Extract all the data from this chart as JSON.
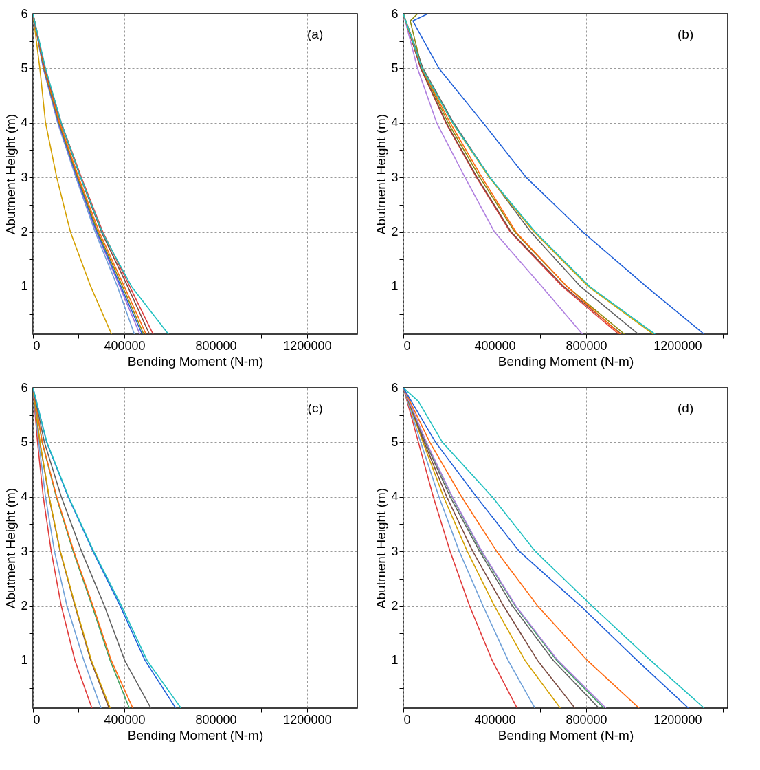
{
  "chart_data": [
    {
      "type": "line",
      "xlabel": "Bending Moment (N-m)",
      "ylabel": "Abutment Height (m)",
      "annotations": [
        "(a)"
      ],
      "grid": true,
      "xlim": [
        0,
        1420000
      ],
      "ylim": [
        0.13,
        6
      ],
      "xticks": [
        0,
        {
          "value": 200000,
          "label": null
        },
        400000,
        {
          "value": 600000,
          "label": null
        },
        800000,
        {
          "value": 1000000,
          "label": null
        },
        1200000,
        {
          "value": 1400000,
          "label": null
        }
      ],
      "yticks": [
        {
          "value": 0.5,
          "label": null
        },
        1,
        {
          "value": 1.5,
          "label": null
        },
        2,
        {
          "value": 2.5,
          "label": null
        },
        3,
        {
          "value": 3.5,
          "label": null
        },
        4,
        {
          "value": 4.5,
          "label": null
        },
        5,
        {
          "value": 5.5,
          "label": null
        },
        6
      ],
      "series": [
        {
          "color": "#d4a000",
          "x": [
            0,
            30000,
            55000,
            104000,
            164000,
            253000,
            344000
          ],
          "values": [
            6,
            5,
            4,
            3,
            2,
            1,
            0.13
          ]
        },
        {
          "color": "#6fa0d8",
          "x": [
            0,
            45000,
            108000,
            188000,
            272000,
            370000,
            444000
          ],
          "values": [
            6,
            5,
            4,
            3,
            2,
            1,
            0.13
          ]
        },
        {
          "color": "#a070d8",
          "x": [
            0,
            46000,
            110000,
            191000,
            277000,
            380000,
            468000
          ],
          "values": [
            6,
            5,
            4,
            3,
            2,
            1,
            0.13
          ]
        },
        {
          "color": "#2060d8",
          "x": [
            0,
            47000,
            112000,
            193000,
            280000,
            385000,
            478000
          ],
          "values": [
            6,
            5,
            4,
            3,
            2,
            1,
            0.13
          ]
        },
        {
          "color": "#8a8a10",
          "x": [
            0,
            48000,
            114000,
            196000,
            284000,
            392000,
            485000
          ],
          "values": [
            6,
            5,
            4,
            3,
            2,
            1,
            0.13
          ]
        },
        {
          "color": "#ff6a10",
          "x": [
            0,
            50000,
            117000,
            200000,
            290000,
            400000,
            495000
          ],
          "values": [
            6,
            5,
            4,
            3,
            2,
            1,
            0.13
          ]
        },
        {
          "color": "#7a4a40",
          "x": [
            0,
            52000,
            122000,
            208000,
            300000,
            415000,
            510000
          ],
          "values": [
            6,
            5,
            4,
            3,
            2,
            1,
            0.13
          ]
        },
        {
          "color": "#e03a3a",
          "x": [
            0,
            53000,
            124000,
            212000,
            306000,
            424000,
            526000
          ],
          "values": [
            6,
            5,
            4,
            3,
            2,
            1,
            0.13
          ]
        },
        {
          "color": "#20c0c0",
          "x": [
            0,
            55000,
            124000,
            209000,
            303000,
            432000,
            593000
          ],
          "values": [
            6,
            5,
            4,
            3,
            2,
            1,
            0.13
          ]
        }
      ]
    },
    {
      "type": "line",
      "xlabel": "Bending Moment (N-m)",
      "ylabel": "Abutment Height (m)",
      "annotations": [
        "(b)"
      ],
      "grid": true,
      "xlim": [
        0,
        1420000
      ],
      "ylim": [
        0.13,
        6
      ],
      "xticks": [
        0,
        {
          "value": 200000,
          "label": null
        },
        400000,
        {
          "value": 600000,
          "label": null
        },
        800000,
        {
          "value": 1000000,
          "label": null
        },
        1200000,
        {
          "value": 1400000,
          "label": null
        }
      ],
      "yticks": [
        {
          "value": 0.5,
          "label": null
        },
        1,
        {
          "value": 1.5,
          "label": null
        },
        2,
        {
          "value": 2.5,
          "label": null
        },
        3,
        {
          "value": 3.5,
          "label": null
        },
        4,
        {
          "value": 4.5,
          "label": null
        },
        5,
        {
          "value": 5.5,
          "label": null
        },
        6
      ],
      "series": [
        {
          "color": "#b080e0",
          "x": [
            0,
            62000,
            146000,
            270000,
            399000,
            607000,
            784000
          ],
          "values": [
            6,
            5,
            4,
            3,
            2,
            1,
            0.13
          ]
        },
        {
          "color": "#e03a3a",
          "x": [
            0,
            76000,
            186000,
            320000,
            468000,
            697000,
            943000
          ],
          "values": [
            6,
            5,
            4,
            3,
            2,
            1,
            0.13
          ]
        },
        {
          "color": "#7a4a40",
          "x": [
            0,
            77000,
            188000,
            323000,
            472000,
            703000,
            955000
          ],
          "values": [
            6,
            5,
            4,
            3,
            2,
            1,
            0.13
          ]
        },
        {
          "color": "#8a8a10",
          "x": [
            62000,
            30000,
            81000,
            196000,
            335000,
            488000,
            717000,
            968000
          ],
          "values": [
            6,
            5.87,
            5,
            4,
            3,
            2,
            1,
            0.13
          ]
        },
        {
          "color": "#ff6a10",
          "x": [
            0,
            81000,
            205000,
            344000,
            493000,
            717000,
            950000
          ],
          "values": [
            6,
            5,
            4,
            3,
            2,
            1,
            0.13
          ]
        },
        {
          "color": "#606060",
          "x": [
            0,
            86000,
            220000,
            379000,
            558000,
            776000,
            1029000
          ],
          "values": [
            6,
            5,
            4,
            3,
            2,
            1,
            0.13
          ]
        },
        {
          "color": "#d4a000",
          "x": [
            0,
            82000,
            215000,
            376000,
            572000,
            810000,
            1094000
          ],
          "values": [
            6,
            5,
            4,
            3,
            2,
            1,
            0.13
          ]
        },
        {
          "color": "#20c0c0",
          "x": [
            0,
            82000,
            216000,
            379000,
            578000,
            816000,
            1102000
          ],
          "values": [
            6,
            5,
            4,
            3,
            2,
            1,
            0.13
          ]
        },
        {
          "color": "#2060d8",
          "x": [
            0,
            107000,
            42000,
            57000,
            156000,
            349000,
            538000,
            786000,
            1064000,
            1317000
          ],
          "values": [
            6,
            6,
            5.87,
            5.75,
            5,
            4,
            3,
            2,
            1,
            0.13
          ]
        }
      ]
    },
    {
      "type": "line",
      "xlabel": "Bending Moment (N-m)",
      "ylabel": "Abutment Height (m)",
      "annotations": [
        "(c)"
      ],
      "grid": true,
      "xlim": [
        0,
        1420000
      ],
      "ylim": [
        0.13,
        6
      ],
      "xticks": [
        0,
        {
          "value": 200000,
          "label": null
        },
        400000,
        {
          "value": 600000,
          "label": null
        },
        800000,
        {
          "value": 1000000,
          "label": null
        },
        1200000,
        {
          "value": 1400000,
          "label": null
        }
      ],
      "yticks": [
        {
          "value": 0.5,
          "label": null
        },
        1,
        {
          "value": 1.5,
          "label": null
        },
        2,
        {
          "value": 2.5,
          "label": null
        },
        3,
        {
          "value": 3.5,
          "label": null
        },
        4,
        {
          "value": 4.5,
          "label": null
        },
        5,
        {
          "value": 5.5,
          "label": null
        },
        6
      ],
      "series": [
        {
          "color": "#e03a3a",
          "x": [
            0,
            20000,
            45000,
            80000,
            124000,
            184000,
            258000
          ],
          "values": [
            6,
            5,
            4,
            3,
            2,
            1,
            0.13
          ]
        },
        {
          "color": "#6fa0d8",
          "x": [
            0,
            25000,
            55000,
            94000,
            149000,
            223000,
            298000
          ],
          "values": [
            6,
            5,
            4,
            3,
            2,
            1,
            0.13
          ]
        },
        {
          "color": "#7a4a40",
          "x": [
            0,
            30000,
            70000,
            119000,
            184000,
            253000,
            333000
          ],
          "values": [
            6,
            5,
            4,
            3,
            2,
            1,
            0.13
          ]
        },
        {
          "color": "#d4a000",
          "x": [
            0,
            31000,
            71000,
            120000,
            186000,
            256000,
            338000
          ],
          "values": [
            6,
            5,
            4,
            3,
            2,
            1,
            0.13
          ]
        },
        {
          "color": "#40a060",
          "x": [
            0,
            40000,
            102000,
            176000,
            259000,
            338000,
            422000
          ],
          "values": [
            6,
            5,
            4,
            3,
            2,
            1,
            0.13
          ]
        },
        {
          "color": "#ff6a10",
          "x": [
            0,
            41000,
            104000,
            179000,
            263000,
            343000,
            437000
          ],
          "values": [
            6,
            5,
            4,
            3,
            2,
            1,
            0.13
          ]
        },
        {
          "color": "#606060",
          "x": [
            0,
            50000,
            124000,
            213000,
            313000,
            402000,
            516000
          ],
          "values": [
            6,
            5,
            4,
            3,
            2,
            1,
            0.13
          ]
        },
        {
          "color": "#2060d8",
          "x": [
            0,
            60000,
            154000,
            263000,
            382000,
            491000,
            625000
          ],
          "values": [
            6,
            5,
            4,
            3,
            2,
            1,
            0.13
          ]
        },
        {
          "color": "#20c0c0",
          "x": [
            0,
            61000,
            156000,
            266000,
            388000,
            500000,
            648000
          ],
          "values": [
            6,
            5,
            4,
            3,
            2,
            1,
            0.13
          ]
        }
      ]
    },
    {
      "type": "line",
      "xlabel": "Bending Moment (N-m)",
      "ylabel": "Abutment Height (m)",
      "annotations": [
        "(d)"
      ],
      "grid": true,
      "xlim": [
        0,
        1420000
      ],
      "ylim": [
        0.13,
        6
      ],
      "xticks": [
        0,
        {
          "value": 200000,
          "label": null
        },
        400000,
        {
          "value": 600000,
          "label": null
        },
        800000,
        {
          "value": 1000000,
          "label": null
        },
        1200000,
        {
          "value": 1400000,
          "label": null
        }
      ],
      "yticks": [
        {
          "value": 0.5,
          "label": null
        },
        1,
        {
          "value": 1.5,
          "label": null
        },
        2,
        {
          "value": 2.5,
          "label": null
        },
        3,
        {
          "value": 3.5,
          "label": null
        },
        4,
        {
          "value": 4.5,
          "label": null
        },
        5,
        {
          "value": 5.5,
          "label": null
        },
        6
      ],
      "series": [
        {
          "color": "#e03a3a",
          "x": [
            0,
            66000,
            131000,
            205000,
            290000,
            389000,
            498000
          ],
          "values": [
            6,
            5,
            4,
            3,
            2,
            1,
            0.13
          ]
        },
        {
          "color": "#6fa0d8",
          "x": [
            0,
            76000,
            156000,
            245000,
            349000,
            459000,
            576000
          ],
          "values": [
            6,
            5,
            4,
            3,
            2,
            1,
            0.13
          ]
        },
        {
          "color": "#d4a000",
          "x": [
            0,
            86000,
            176000,
            280000,
            399000,
            533000,
            687000
          ],
          "values": [
            6,
            5,
            4,
            3,
            2,
            1,
            0.13
          ]
        },
        {
          "color": "#7a4a40",
          "x": [
            0,
            91000,
            190000,
            304000,
            439000,
            588000,
            751000
          ],
          "values": [
            6,
            5,
            4,
            3,
            2,
            1,
            0.13
          ]
        },
        {
          "color": "#606060",
          "x": [
            0,
            96000,
            205000,
            334000,
            478000,
            657000,
            856000
          ],
          "values": [
            6,
            5,
            4,
            3,
            2,
            1,
            0.13
          ]
        },
        {
          "color": "#40a060",
          "x": [
            0,
            100000,
            213000,
            341000,
            490000,
            672000,
            878000
          ],
          "values": [
            6,
            5,
            4,
            3,
            2,
            1,
            0.13
          ]
        },
        {
          "color": "#b080e0",
          "x": [
            0,
            101000,
            215000,
            344000,
            493000,
            677000,
            887000
          ],
          "values": [
            6,
            5,
            4,
            3,
            2,
            1,
            0.13
          ]
        },
        {
          "color": "#ff6a10",
          "x": [
            0,
            116000,
            255000,
            409000,
            588000,
            806000,
            1032000
          ],
          "values": [
            6,
            5,
            4,
            3,
            2,
            1,
            0.13
          ]
        },
        {
          "color": "#2060d8",
          "x": [
            0,
            141000,
            320000,
            508000,
            776000,
            1024000,
            1248000
          ],
          "values": [
            6,
            5,
            4,
            3,
            2,
            1,
            0.13
          ]
        },
        {
          "color": "#20c0c0",
          "x": [
            0,
            66000,
            171000,
            389000,
            578000,
            826000,
            1083000,
            1317000
          ],
          "values": [
            6,
            5.75,
            5,
            4,
            3,
            2,
            1,
            0.13
          ]
        }
      ]
    }
  ]
}
